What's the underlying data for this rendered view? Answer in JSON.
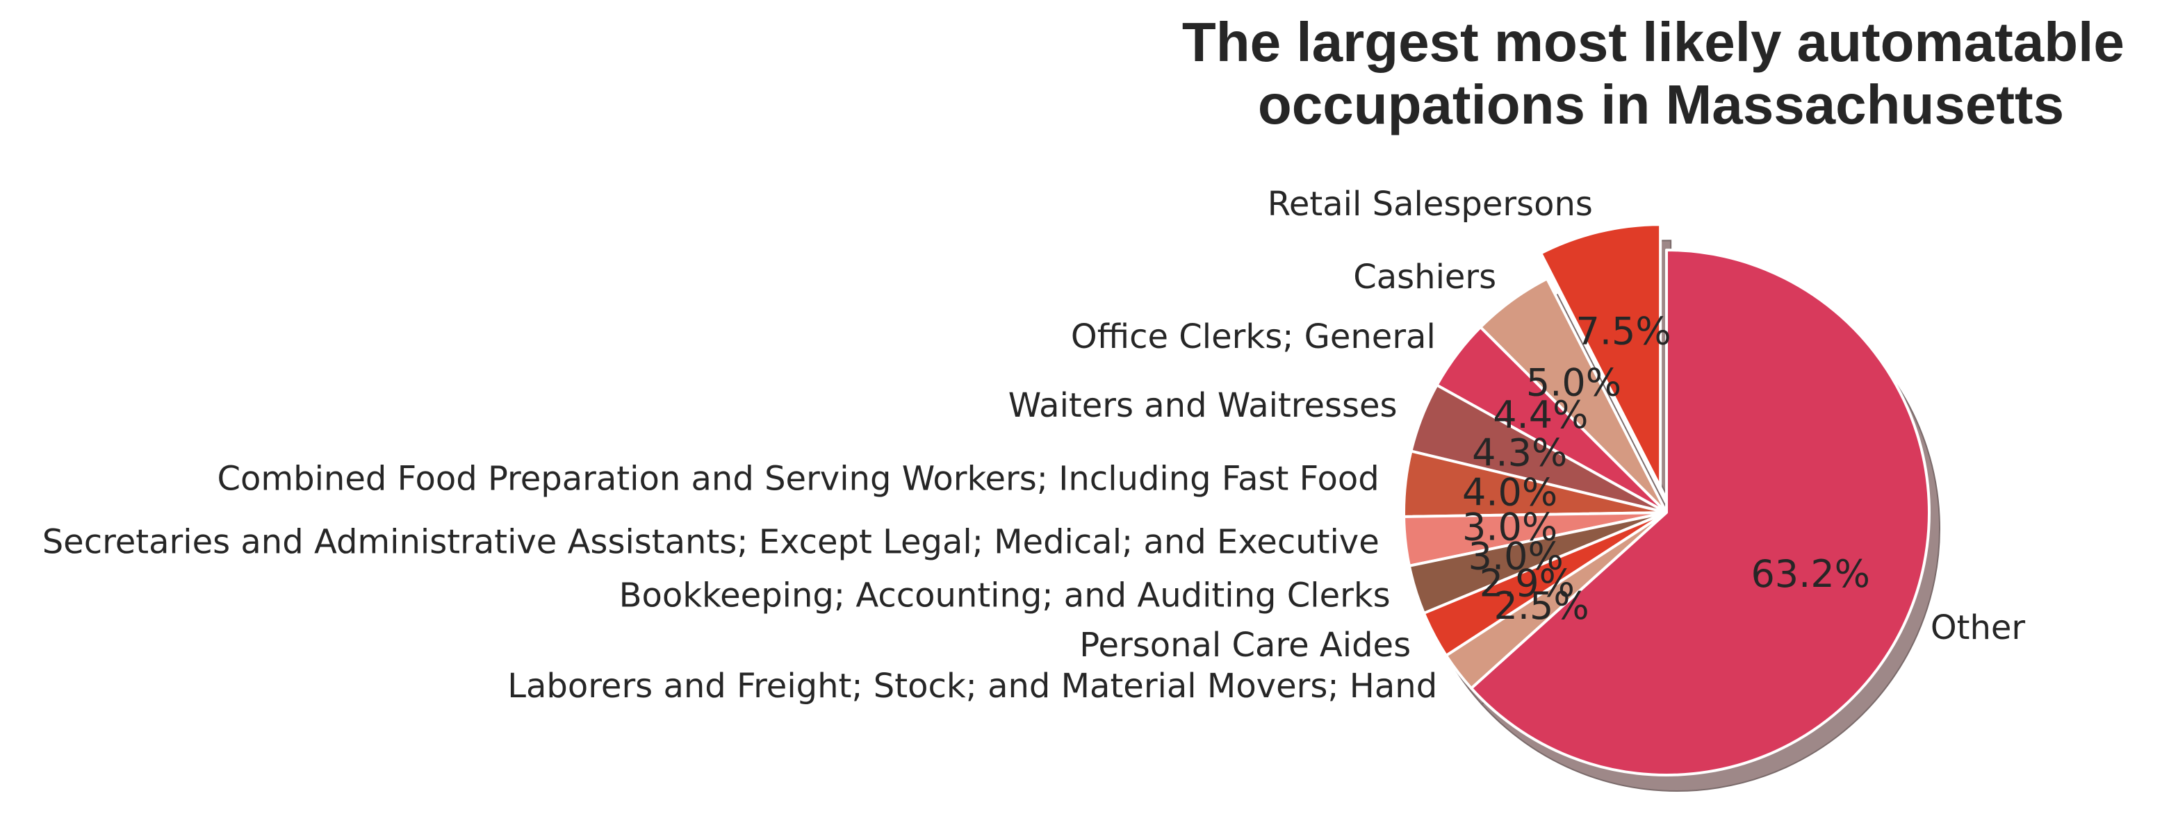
{
  "chart_data": {
    "type": "pie",
    "title": "The largest most likely automatable occupations in Massachusetts",
    "title_lines": [
      "The largest most likely automatable",
      "occupations in Massachusetts"
    ],
    "start_angle_deg": 90,
    "direction": "counterclockwise",
    "shadow": true,
    "slices": [
      {
        "label": "Retail Salespersons",
        "value": 7.5,
        "pct_label": "7.5%",
        "color": "#E03C28",
        "explode": 0.1
      },
      {
        "label": "Cashiers",
        "value": 5.0,
        "pct_label": "5.0%",
        "color": "#D59A82",
        "explode": 0.0
      },
      {
        "label": "Office Clerks; General",
        "value": 4.4,
        "pct_label": "4.4%",
        "color": "#D93A5A",
        "explode": 0.0
      },
      {
        "label": "Waiters and Waitresses",
        "value": 4.3,
        "pct_label": "4.3%",
        "color": "#A8524F",
        "explode": 0.0
      },
      {
        "label": "Combined Food Preparation and Serving Workers; Including Fast Food",
        "value": 4.0,
        "pct_label": "4.0%",
        "color": "#C9553A",
        "explode": 0.0
      },
      {
        "label": "Secretaries and Administrative Assistants; Except Legal; Medical; and Executive",
        "value": 3.0,
        "pct_label": "3.0%",
        "color": "#EC7F75",
        "explode": 0.0
      },
      {
        "label": "Bookkeeping; Accounting; and Auditing Clerks",
        "value": 3.0,
        "pct_label": "3.0%",
        "color": "#8E5A44",
        "explode": 0.0
      },
      {
        "label": "Personal Care Aides",
        "value": 2.9,
        "pct_label": "2.9%",
        "color": "#E03C28",
        "explode": 0.0
      },
      {
        "label": "Laborers and Freight; Stock; and Material Movers; Hand",
        "value": 2.5,
        "pct_label": "2.5%",
        "color": "#D59A82",
        "explode": 0.0
      },
      {
        "label": "Other",
        "value": 63.2,
        "pct_label": "63.2%",
        "color": "#D83A5C",
        "explode": 0.0
      }
    ],
    "shadow_color": "#9E8888"
  }
}
